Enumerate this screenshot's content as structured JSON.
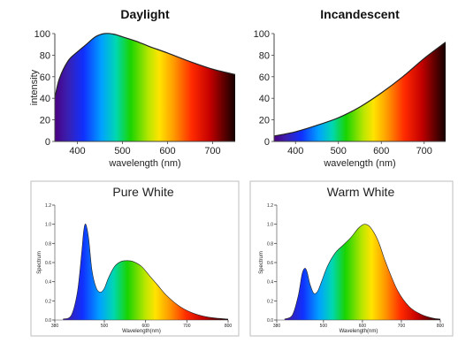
{
  "chart_data": [
    {
      "type": "area",
      "title": "Daylight",
      "xlabel": "wavelength (nm)",
      "ylabel": "intensity",
      "xlim": [
        350,
        750
      ],
      "ylim": [
        0,
        100
      ],
      "x_ticks": [
        "400",
        "500",
        "600",
        "700"
      ],
      "y_ticks": [
        "0",
        "20",
        "40",
        "60",
        "80",
        "100"
      ],
      "fill": "visible-spectrum gradient",
      "series": [
        {
          "x": [
            350,
            360,
            380,
            400,
            420,
            440,
            460,
            480,
            500,
            530,
            560,
            600,
            650,
            700,
            750
          ],
          "y": [
            40,
            58,
            75,
            83,
            90,
            97,
            100,
            99.5,
            97,
            93,
            88,
            82,
            74,
            67,
            62
          ]
        }
      ]
    },
    {
      "type": "area",
      "title": "Incandescent",
      "xlabel": "wavelength (nm)",
      "ylabel": "",
      "xlim": [
        350,
        750
      ],
      "ylim": [
        0,
        100
      ],
      "x_ticks": [
        "400",
        "500",
        "600",
        "700"
      ],
      "y_ticks": [
        "0",
        "20",
        "40",
        "60",
        "80",
        "100"
      ],
      "fill": "visible-spectrum gradient",
      "series": [
        {
          "x": [
            350,
            400,
            450,
            500,
            550,
            600,
            650,
            700,
            750
          ],
          "y": [
            5,
            9,
            15,
            22,
            32,
            45,
            60,
            77,
            92
          ]
        }
      ]
    },
    {
      "type": "area",
      "title": "Pure White",
      "xlabel": "Wavelength(nm)",
      "ylabel": "Spectrum",
      "xlim": [
        380,
        800
      ],
      "ylim": [
        0,
        1.2
      ],
      "x_ticks": [
        "380",
        "500",
        "600",
        "700",
        "800"
      ],
      "y_ticks": [
        "0.0",
        "0.2",
        "0.4",
        "0.6",
        "0.8",
        "1.0",
        "1.2"
      ],
      "fill": "visible-spectrum gradient",
      "series": [
        {
          "x": [
            400,
            420,
            435,
            445,
            450,
            455,
            462,
            470,
            480,
            490,
            500,
            510,
            525,
            540,
            555,
            570,
            590,
            610,
            630,
            650,
            680,
            710,
            740,
            770,
            800
          ],
          "y": [
            0.01,
            0.05,
            0.3,
            0.7,
            0.93,
            1.0,
            0.85,
            0.52,
            0.34,
            0.29,
            0.33,
            0.44,
            0.56,
            0.61,
            0.62,
            0.61,
            0.56,
            0.46,
            0.36,
            0.26,
            0.15,
            0.08,
            0.04,
            0.02,
            0.01
          ]
        }
      ]
    },
    {
      "type": "area",
      "title": "Warm White",
      "xlabel": "Wavelength(nm)",
      "ylabel": "Spectrum",
      "xlim": [
        380,
        800
      ],
      "ylim": [
        0,
        1.2
      ],
      "x_ticks": [
        "380",
        "500",
        "600",
        "700",
        "800"
      ],
      "y_ticks": [
        "0.0",
        "0.2",
        "0.4",
        "0.6",
        "0.8",
        "1.0",
        "1.2"
      ],
      "fill": "visible-spectrum gradient",
      "series": [
        {
          "x": [
            400,
            420,
            435,
            445,
            452,
            458,
            465,
            475,
            485,
            495,
            510,
            530,
            550,
            570,
            590,
            605,
            620,
            640,
            660,
            690,
            720,
            750,
            780,
            800
          ],
          "y": [
            0.01,
            0.05,
            0.25,
            0.48,
            0.54,
            0.5,
            0.38,
            0.28,
            0.3,
            0.4,
            0.56,
            0.7,
            0.78,
            0.86,
            0.96,
            1.0,
            0.97,
            0.83,
            0.6,
            0.31,
            0.14,
            0.06,
            0.02,
            0.01
          ]
        }
      ]
    }
  ]
}
